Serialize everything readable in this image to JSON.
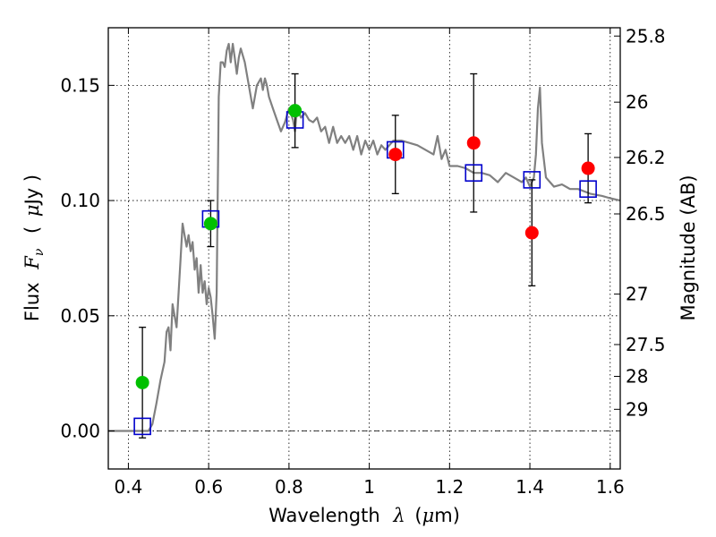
{
  "chart_data": {
    "type": "scatter",
    "xlabel": "Wavelength",
    "xlabel_symbol": "λ",
    "xlabel_unit_open": "(",
    "xlabel_unit_mu": "μ",
    "xlabel_unit_rest": "m)",
    "ylabel": "Flux",
    "ylabel_symbol": "F",
    "ylabel_sub": "ν",
    "ylabel_unit_open": "(",
    "ylabel_unit_mu": "μ",
    "ylabel_unit_rest": "Jy )",
    "y2label": "Magnitude (AB)",
    "xlim": [
      0.35,
      1.625
    ],
    "ylim": [
      -0.0165,
      0.175
    ],
    "grid": true,
    "x_ticks": [
      {
        "value": 0.4,
        "label": "0.4"
      },
      {
        "value": 0.6,
        "label": "0.6"
      },
      {
        "value": 0.8,
        "label": "0.8"
      },
      {
        "value": 1.0,
        "label": "1"
      },
      {
        "value": 1.2,
        "label": "1.2"
      },
      {
        "value": 1.4,
        "label": "1.4"
      },
      {
        "value": 1.6,
        "label": "1.6"
      }
    ],
    "y_ticks": [
      {
        "value": 0.0,
        "label": "0.00"
      },
      {
        "value": 0.05,
        "label": "0.05"
      },
      {
        "value": 0.1,
        "label": "0.10"
      },
      {
        "value": 0.15,
        "label": "0.15"
      }
    ],
    "mag_ticks": [
      {
        "flux": 0.1714,
        "label": "25.8"
      },
      {
        "flux": 0.1427,
        "label": "26"
      },
      {
        "flux": 0.1187,
        "label": "26.2"
      },
      {
        "flux": 0.0942,
        "label": "26.5"
      },
      {
        "flux": 0.0594,
        "label": "27"
      },
      {
        "flux": 0.0375,
        "label": "27.5"
      },
      {
        "flux": 0.0237,
        "label": "28"
      },
      {
        "flux": 0.0094,
        "label": "29"
      }
    ],
    "colors": {
      "model": "#808080",
      "green": "#00c000",
      "red": "#ff0000",
      "square": "#0000cc",
      "errorbar": "#000000",
      "zero_line": "#000000"
    },
    "series": [
      {
        "kind": "model_spectrum",
        "x": [
          0.35,
          0.43,
          0.45,
          0.46,
          0.47,
          0.48,
          0.49,
          0.495,
          0.5,
          0.505,
          0.51,
          0.52,
          0.53,
          0.535,
          0.54,
          0.545,
          0.55,
          0.555,
          0.56,
          0.565,
          0.57,
          0.575,
          0.58,
          0.585,
          0.59,
          0.595,
          0.6,
          0.605,
          0.61,
          0.615,
          0.62,
          0.625,
          0.63,
          0.635,
          0.64,
          0.645,
          0.65,
          0.655,
          0.66,
          0.665,
          0.67,
          0.675,
          0.68,
          0.69,
          0.7,
          0.71,
          0.72,
          0.73,
          0.735,
          0.74,
          0.745,
          0.75,
          0.76,
          0.77,
          0.78,
          0.79,
          0.8,
          0.81,
          0.815,
          0.82,
          0.83,
          0.84,
          0.85,
          0.86,
          0.87,
          0.88,
          0.89,
          0.9,
          0.91,
          0.92,
          0.93,
          0.94,
          0.95,
          0.96,
          0.97,
          0.98,
          0.99,
          1.0,
          1.01,
          1.02,
          1.03,
          1.04,
          1.05,
          1.06,
          1.08,
          1.1,
          1.12,
          1.14,
          1.16,
          1.17,
          1.18,
          1.19,
          1.2,
          1.22,
          1.24,
          1.26,
          1.28,
          1.3,
          1.32,
          1.34,
          1.36,
          1.38,
          1.39,
          1.4,
          1.41,
          1.415,
          1.42,
          1.425,
          1.43,
          1.44,
          1.45,
          1.46,
          1.48,
          1.5,
          1.52,
          1.55,
          1.58,
          1.6,
          1.625
        ],
        "y": [
          0.0,
          0.0,
          0.0,
          0.003,
          0.012,
          0.022,
          0.03,
          0.043,
          0.045,
          0.035,
          0.055,
          0.045,
          0.075,
          0.09,
          0.085,
          0.08,
          0.085,
          0.078,
          0.082,
          0.07,
          0.075,
          0.06,
          0.072,
          0.06,
          0.065,
          0.055,
          0.062,
          0.058,
          0.05,
          0.04,
          0.06,
          0.145,
          0.16,
          0.16,
          0.158,
          0.165,
          0.168,
          0.16,
          0.168,
          0.162,
          0.155,
          0.162,
          0.166,
          0.16,
          0.15,
          0.14,
          0.15,
          0.153,
          0.148,
          0.153,
          0.15,
          0.145,
          0.14,
          0.135,
          0.13,
          0.134,
          0.14,
          0.135,
          0.13,
          0.14,
          0.136,
          0.138,
          0.135,
          0.134,
          0.136,
          0.13,
          0.132,
          0.125,
          0.132,
          0.125,
          0.128,
          0.125,
          0.128,
          0.122,
          0.128,
          0.12,
          0.126,
          0.122,
          0.126,
          0.12,
          0.124,
          0.122,
          0.124,
          0.126,
          0.126,
          0.125,
          0.124,
          0.122,
          0.12,
          0.128,
          0.118,
          0.122,
          0.115,
          0.115,
          0.114,
          0.112,
          0.112,
          0.111,
          0.108,
          0.112,
          0.11,
          0.108,
          0.11,
          0.106,
          0.11,
          0.12,
          0.14,
          0.149,
          0.125,
          0.11,
          0.108,
          0.106,
          0.107,
          0.105,
          0.105,
          0.103,
          0.102,
          0.101,
          0.1
        ]
      },
      {
        "kind": "model_photometry",
        "marker": "square",
        "x": [
          0.435,
          0.605,
          0.815,
          1.065,
          1.26,
          1.405,
          1.545
        ],
        "y": [
          0.002,
          0.092,
          0.135,
          0.122,
          0.112,
          0.109,
          0.105
        ]
      },
      {
        "kind": "detections",
        "marker": "circle",
        "color": "green",
        "x": [
          0.435,
          0.605,
          0.815
        ],
        "y": [
          0.021,
          0.09,
          0.139
        ],
        "err_lo": [
          0.024,
          0.01,
          0.016
        ],
        "err_hi": [
          0.024,
          0.01,
          0.016
        ]
      },
      {
        "kind": "detections",
        "marker": "circle",
        "color": "red",
        "x": [
          1.065,
          1.26,
          1.405,
          1.545
        ],
        "y": [
          0.12,
          0.125,
          0.086,
          0.114
        ],
        "err_lo": [
          0.017,
          0.03,
          0.023,
          0.015
        ],
        "err_hi": [
          0.017,
          0.03,
          0.023,
          0.015
        ]
      }
    ]
  }
}
